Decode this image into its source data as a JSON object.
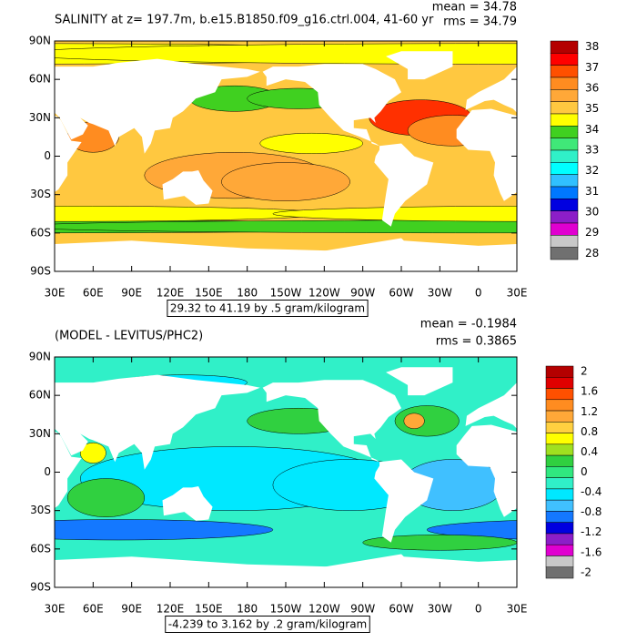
{
  "panels": [
    {
      "title": "SALINITY at z= 197.7m, b.e15.B1850.f09_g16.ctrl.004, 41-60 yr",
      "mean": "mean = 34.78",
      "rms": "rms = 34.79",
      "lat_labels": [
        "90N",
        "60N",
        "30N",
        "0",
        "30S",
        "60S",
        "90S"
      ],
      "lon_labels": [
        "30E",
        "60E",
        "90E",
        "120E",
        "150E",
        "180",
        "150W",
        "120W",
        "90W",
        "60W",
        "30W",
        "0",
        "30E"
      ],
      "contour_info": "29.32 to 41.19 by .5 gram/kilogram",
      "colorbar": {
        "labels": [
          "38",
          "37",
          "36",
          "35",
          "34",
          "33",
          "32",
          "31",
          "30",
          "29",
          "28"
        ],
        "colors": [
          "#b40000",
          "#ff0000",
          "#ff5000",
          "#ff8c20",
          "#ffa838",
          "#ffc840",
          "#ffff00",
          "#40d020",
          "#40e878",
          "#30f0c8",
          "#00ffff",
          "#30c0ff",
          "#0078ff",
          "#0000e0",
          "#8c1ec8",
          "#e000d0",
          "#c8c8c8",
          "#707070"
        ]
      }
    },
    {
      "title": "(MODEL - LEVITUS/PHC2)",
      "mean": "mean = -0.1984",
      "rms": "rms = 0.3865",
      "lat_labels": [
        "90N",
        "60N",
        "30N",
        "0",
        "30S",
        "60S",
        "90S"
      ],
      "lon_labels": [
        "30E",
        "60E",
        "90E",
        "120E",
        "150E",
        "180",
        "150W",
        "120W",
        "90W",
        "60W",
        "30W",
        "0",
        "30E"
      ],
      "contour_info": "-4.239 to 3.162 by .2 gram/kilogram",
      "colorbar": {
        "labels": [
          "2",
          "1.6",
          "1.2",
          "0.8",
          "0.4",
          "0",
          "-0.4",
          "-0.8",
          "-1.2",
          "-1.6",
          "-2"
        ],
        "colors": [
          "#b40000",
          "#e00000",
          "#ff5000",
          "#ff8c20",
          "#ffa838",
          "#ffd040",
          "#ffff00",
          "#a0e020",
          "#30d040",
          "#30e880",
          "#30f0c8",
          "#00e8ff",
          "#40c0ff",
          "#1478ff",
          "#0000e0",
          "#8c1ec8",
          "#e000d0",
          "#c8c8c8",
          "#707070"
        ]
      }
    }
  ]
}
